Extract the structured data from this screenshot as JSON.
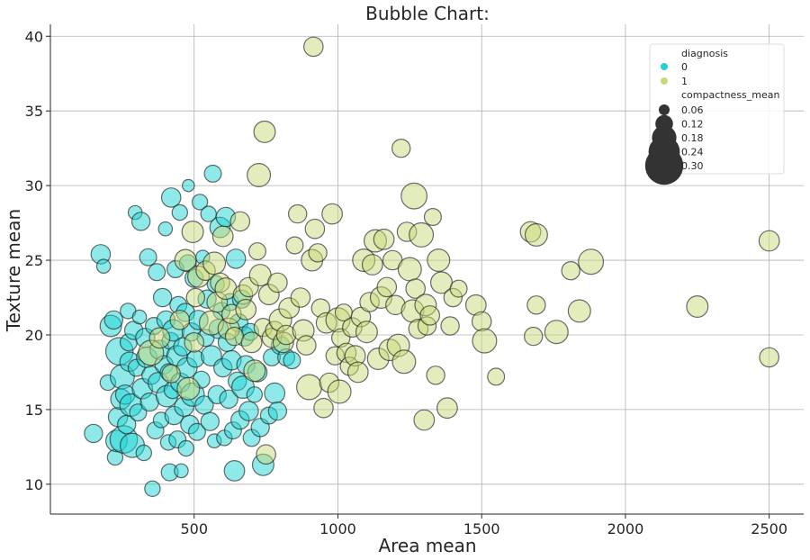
{
  "chart_data": {
    "type": "scatter",
    "title": "Bubble Chart:",
    "xlabel": "Area mean",
    "ylabel": "Texture mean",
    "xlim": [
      0,
      2620
    ],
    "ylim": [
      8.0,
      40.8
    ],
    "xticks": [
      500,
      1000,
      1500,
      2000,
      2500
    ],
    "yticks": [
      10,
      15,
      20,
      25,
      30,
      35,
      40
    ],
    "grid": true,
    "legend_position": "top-right",
    "hue_title": "diagnosis",
    "size_title": "compactness_mean",
    "size_legend": [
      0.06,
      0.12,
      0.18,
      0.24,
      0.3
    ],
    "series": [
      {
        "name": "0",
        "color": "#1fd3d3",
        "points": [
          [
            150,
            13.4,
            0.06
          ],
          [
            175,
            25.4,
            0.07
          ],
          [
            185,
            24.6,
            0.03
          ],
          [
            200,
            16.8,
            0.04
          ],
          [
            210,
            20.6,
            0.09
          ],
          [
            220,
            21.0,
            0.06
          ],
          [
            225,
            11.8,
            0.04
          ],
          [
            230,
            12.9,
            0.09
          ],
          [
            235,
            14.5,
            0.07
          ],
          [
            240,
            18.9,
            0.16
          ],
          [
            245,
            15.7,
            0.08
          ],
          [
            250,
            17.2,
            0.12
          ],
          [
            255,
            13.0,
            0.16
          ],
          [
            260,
            16.0,
            0.07
          ],
          [
            265,
            14.0,
            0.06
          ],
          [
            270,
            21.6,
            0.04
          ],
          [
            272,
            19.5,
            0.05
          ],
          [
            275,
            18.2,
            0.07
          ],
          [
            280,
            15.3,
            0.1
          ],
          [
            285,
            12.6,
            0.12
          ],
          [
            290,
            20.3,
            0.06
          ],
          [
            295,
            28.2,
            0.03
          ],
          [
            300,
            17.8,
            0.05
          ],
          [
            305,
            14.8,
            0.05
          ],
          [
            310,
            21.2,
            0.03
          ],
          [
            315,
            27.6,
            0.06
          ],
          [
            320,
            16.4,
            0.08
          ],
          [
            325,
            12.1,
            0.04
          ],
          [
            330,
            19.8,
            0.07
          ],
          [
            335,
            18.5,
            0.08
          ],
          [
            340,
            25.2,
            0.05
          ],
          [
            345,
            15.5,
            0.06
          ],
          [
            350,
            17.3,
            0.06
          ],
          [
            355,
            9.7,
            0.04
          ],
          [
            360,
            20.6,
            0.05
          ],
          [
            365,
            13.6,
            0.05
          ],
          [
            370,
            24.2,
            0.05
          ],
          [
            375,
            16.8,
            0.08
          ],
          [
            380,
            19.0,
            0.07
          ],
          [
            385,
            14.3,
            0.04
          ],
          [
            390,
            22.5,
            0.06
          ],
          [
            395,
            18.0,
            0.06
          ],
          [
            400,
            27.1,
            0.03
          ],
          [
            402,
            21.0,
            0.06
          ],
          [
            405,
            15.9,
            0.09
          ],
          [
            410,
            12.8,
            0.04
          ],
          [
            412,
            17.5,
            0.05
          ],
          [
            415,
            10.8,
            0.05
          ],
          [
            418,
            19.6,
            0.05
          ],
          [
            420,
            29.2,
            0.07
          ],
          [
            425,
            16.3,
            0.05
          ],
          [
            428,
            20.3,
            0.09
          ],
          [
            430,
            14.6,
            0.06
          ],
          [
            435,
            24.4,
            0.05
          ],
          [
            440,
            18.6,
            0.08
          ],
          [
            442,
            13.0,
            0.05
          ],
          [
            445,
            22.0,
            0.05
          ],
          [
            450,
            28.2,
            0.04
          ],
          [
            452,
            16.8,
            0.07
          ],
          [
            455,
            10.9,
            0.03
          ],
          [
            460,
            19.2,
            0.06
          ],
          [
            465,
            15.2,
            0.07
          ],
          [
            470,
            21.5,
            0.06
          ],
          [
            472,
            12.4,
            0.04
          ],
          [
            475,
            17.8,
            0.08
          ],
          [
            478,
            24.8,
            0.05
          ],
          [
            480,
            30.0,
            0.02
          ],
          [
            485,
            14.0,
            0.06
          ],
          [
            490,
            20.2,
            0.06
          ],
          [
            495,
            16.0,
            0.11
          ],
          [
            500,
            23.8,
            0.06
          ],
          [
            505,
            18.4,
            0.05
          ],
          [
            510,
            13.5,
            0.05
          ],
          [
            515,
            21.0,
            0.07
          ],
          [
            520,
            28.9,
            0.04
          ],
          [
            525,
            17.0,
            0.05
          ],
          [
            530,
            25.2,
            0.03
          ],
          [
            535,
            15.3,
            0.06
          ],
          [
            540,
            19.8,
            0.05
          ],
          [
            545,
            22.4,
            0.06
          ],
          [
            550,
            28.1,
            0.04
          ],
          [
            555,
            14.2,
            0.06
          ],
          [
            560,
            18.6,
            0.08
          ],
          [
            565,
            30.8,
            0.05
          ],
          [
            570,
            12.9,
            0.03
          ],
          [
            575,
            23.4,
            0.05
          ],
          [
            580,
            16.0,
            0.06
          ],
          [
            585,
            20.4,
            0.07
          ],
          [
            590,
            27.2,
            0.08
          ],
          [
            595,
            21.6,
            0.05
          ],
          [
            600,
            17.8,
            0.06
          ],
          [
            605,
            13.1,
            0.04
          ],
          [
            610,
            27.9,
            0.07
          ],
          [
            615,
            19.5,
            0.06
          ],
          [
            620,
            15.7,
            0.06
          ],
          [
            625,
            22.2,
            0.05
          ],
          [
            630,
            18.3,
            0.07
          ],
          [
            635,
            13.6,
            0.05
          ],
          [
            640,
            10.9,
            0.08
          ],
          [
            645,
            25.1,
            0.07
          ],
          [
            650,
            16.9,
            0.06
          ],
          [
            655,
            20.8,
            0.06
          ],
          [
            660,
            14.3,
            0.06
          ],
          [
            665,
            22.4,
            0.06
          ],
          [
            670,
            16.5,
            0.1
          ],
          [
            675,
            19.9,
            0.07
          ],
          [
            680,
            18.0,
            0.06
          ],
          [
            690,
            14.9,
            0.07
          ],
          [
            695,
            20.2,
            0.05
          ],
          [
            700,
            13.1,
            0.05
          ],
          [
            710,
            16.0,
            0.04
          ],
          [
            720,
            17.5,
            0.07
          ],
          [
            730,
            13.8,
            0.06
          ],
          [
            740,
            11.3,
            0.09
          ],
          [
            760,
            14.6,
            0.05
          ],
          [
            770,
            18.5,
            0.05
          ],
          [
            780,
            16.1,
            0.08
          ],
          [
            790,
            14.9,
            0.06
          ],
          [
            800,
            19.3,
            0.06
          ],
          [
            820,
            18.5,
            0.05
          ],
          [
            840,
            18.3,
            0.05
          ]
        ]
      },
      {
        "name": "1",
        "color": "#c8d97a",
        "points": [
          [
            350,
            18.8,
            0.13
          ],
          [
            380,
            19.8,
            0.08
          ],
          [
            420,
            17.4,
            0.06
          ],
          [
            450,
            21.0,
            0.07
          ],
          [
            470,
            25.0,
            0.09
          ],
          [
            480,
            16.4,
            0.1
          ],
          [
            495,
            26.9,
            0.09
          ],
          [
            500,
            19.5,
            0.07
          ],
          [
            505,
            22.5,
            0.06
          ],
          [
            515,
            23.9,
            0.09
          ],
          [
            540,
            24.3,
            0.07
          ],
          [
            560,
            20.8,
            0.12
          ],
          [
            570,
            24.8,
            0.1
          ],
          [
            580,
            22.2,
            0.08
          ],
          [
            590,
            23.5,
            0.07
          ],
          [
            600,
            26.6,
            0.08
          ],
          [
            610,
            23.1,
            0.09
          ],
          [
            620,
            20.4,
            0.09
          ],
          [
            630,
            21.4,
            0.07
          ],
          [
            640,
            19.9,
            0.06
          ],
          [
            660,
            27.6,
            0.07
          ],
          [
            670,
            22.7,
            0.07
          ],
          [
            680,
            21.7,
            0.08
          ],
          [
            690,
            23.2,
            0.07
          ],
          [
            700,
            19.5,
            0.08
          ],
          [
            710,
            17.6,
            0.09
          ],
          [
            720,
            25.6,
            0.05
          ],
          [
            725,
            30.7,
            0.11
          ],
          [
            730,
            24.0,
            0.09
          ],
          [
            740,
            20.5,
            0.06
          ],
          [
            745,
            33.6,
            0.09
          ],
          [
            750,
            12.0,
            0.07
          ],
          [
            760,
            22.7,
            0.08
          ],
          [
            770,
            19.8,
            0.07
          ],
          [
            780,
            20.3,
            0.06
          ],
          [
            790,
            23.5,
            0.07
          ],
          [
            800,
            21.0,
            0.1
          ],
          [
            810,
            19.5,
            0.08
          ],
          [
            820,
            20.0,
            0.07
          ],
          [
            830,
            21.8,
            0.08
          ],
          [
            850,
            26.0,
            0.05
          ],
          [
            860,
            28.1,
            0.06
          ],
          [
            870,
            22.5,
            0.07
          ],
          [
            880,
            20.3,
            0.09
          ],
          [
            890,
            19.3,
            0.07
          ],
          [
            900,
            16.5,
            0.13
          ],
          [
            910,
            25.0,
            0.09
          ],
          [
            915,
            39.3,
            0.07
          ],
          [
            920,
            27.1,
            0.07
          ],
          [
            930,
            25.5,
            0.06
          ],
          [
            940,
            21.8,
            0.06
          ],
          [
            950,
            15.1,
            0.07
          ],
          [
            960,
            20.8,
            0.08
          ],
          [
            970,
            16.8,
            0.07
          ],
          [
            980,
            28.1,
            0.08
          ],
          [
            990,
            18.6,
            0.06
          ],
          [
            1000,
            21.0,
            0.12
          ],
          [
            1005,
            16.2,
            0.11
          ],
          [
            1010,
            19.8,
            0.06
          ],
          [
            1020,
            21.5,
            0.05
          ],
          [
            1030,
            18.8,
            0.07
          ],
          [
            1040,
            17.9,
            0.06
          ],
          [
            1050,
            20.5,
            0.07
          ],
          [
            1060,
            18.6,
            0.08
          ],
          [
            1070,
            17.5,
            0.08
          ],
          [
            1080,
            21.2,
            0.07
          ],
          [
            1090,
            25.0,
            0.1
          ],
          [
            1100,
            20.2,
            0.09
          ],
          [
            1110,
            22.2,
            0.07
          ],
          [
            1120,
            24.7,
            0.08
          ],
          [
            1130,
            26.3,
            0.1
          ],
          [
            1140,
            18.4,
            0.09
          ],
          [
            1150,
            22.5,
            0.09
          ],
          [
            1160,
            26.4,
            0.08
          ],
          [
            1170,
            23.2,
            0.07
          ],
          [
            1180,
            19.0,
            0.09
          ],
          [
            1190,
            25.0,
            0.07
          ],
          [
            1200,
            22.0,
            0.07
          ],
          [
            1210,
            19.3,
            0.1
          ],
          [
            1220,
            32.5,
            0.06
          ],
          [
            1230,
            18.2,
            0.11
          ],
          [
            1240,
            26.9,
            0.07
          ],
          [
            1250,
            24.4,
            0.11
          ],
          [
            1260,
            21.6,
            0.1
          ],
          [
            1265,
            29.3,
            0.14
          ],
          [
            1270,
            23.1,
            0.07
          ],
          [
            1280,
            20.4,
            0.07
          ],
          [
            1290,
            26.7,
            0.12
          ],
          [
            1300,
            14.3,
            0.08
          ],
          [
            1305,
            22.0,
            0.09
          ],
          [
            1310,
            20.6,
            0.06
          ],
          [
            1320,
            21.3,
            0.07
          ],
          [
            1330,
            27.9,
            0.05
          ],
          [
            1340,
            17.3,
            0.06
          ],
          [
            1350,
            25.0,
            0.1
          ],
          [
            1360,
            23.5,
            0.09
          ],
          [
            1380,
            15.1,
            0.08
          ],
          [
            1390,
            20.6,
            0.06
          ],
          [
            1400,
            22.5,
            0.06
          ],
          [
            1420,
            23.1,
            0.05
          ],
          [
            1480,
            22.0,
            0.08
          ],
          [
            1500,
            20.9,
            0.07
          ],
          [
            1510,
            19.6,
            0.12
          ],
          [
            1550,
            17.2,
            0.05
          ],
          [
            1670,
            26.9,
            0.08
          ],
          [
            1680,
            19.9,
            0.06
          ],
          [
            1690,
            22.0,
            0.06
          ],
          [
            1690,
            26.7,
            0.1
          ],
          [
            1760,
            20.2,
            0.11
          ],
          [
            1810,
            24.3,
            0.06
          ],
          [
            1840,
            21.6,
            0.1
          ],
          [
            1880,
            24.9,
            0.13
          ],
          [
            2250,
            21.9,
            0.09
          ],
          [
            2500,
            26.3,
            0.08
          ],
          [
            2500,
            18.5,
            0.07
          ]
        ]
      }
    ]
  }
}
